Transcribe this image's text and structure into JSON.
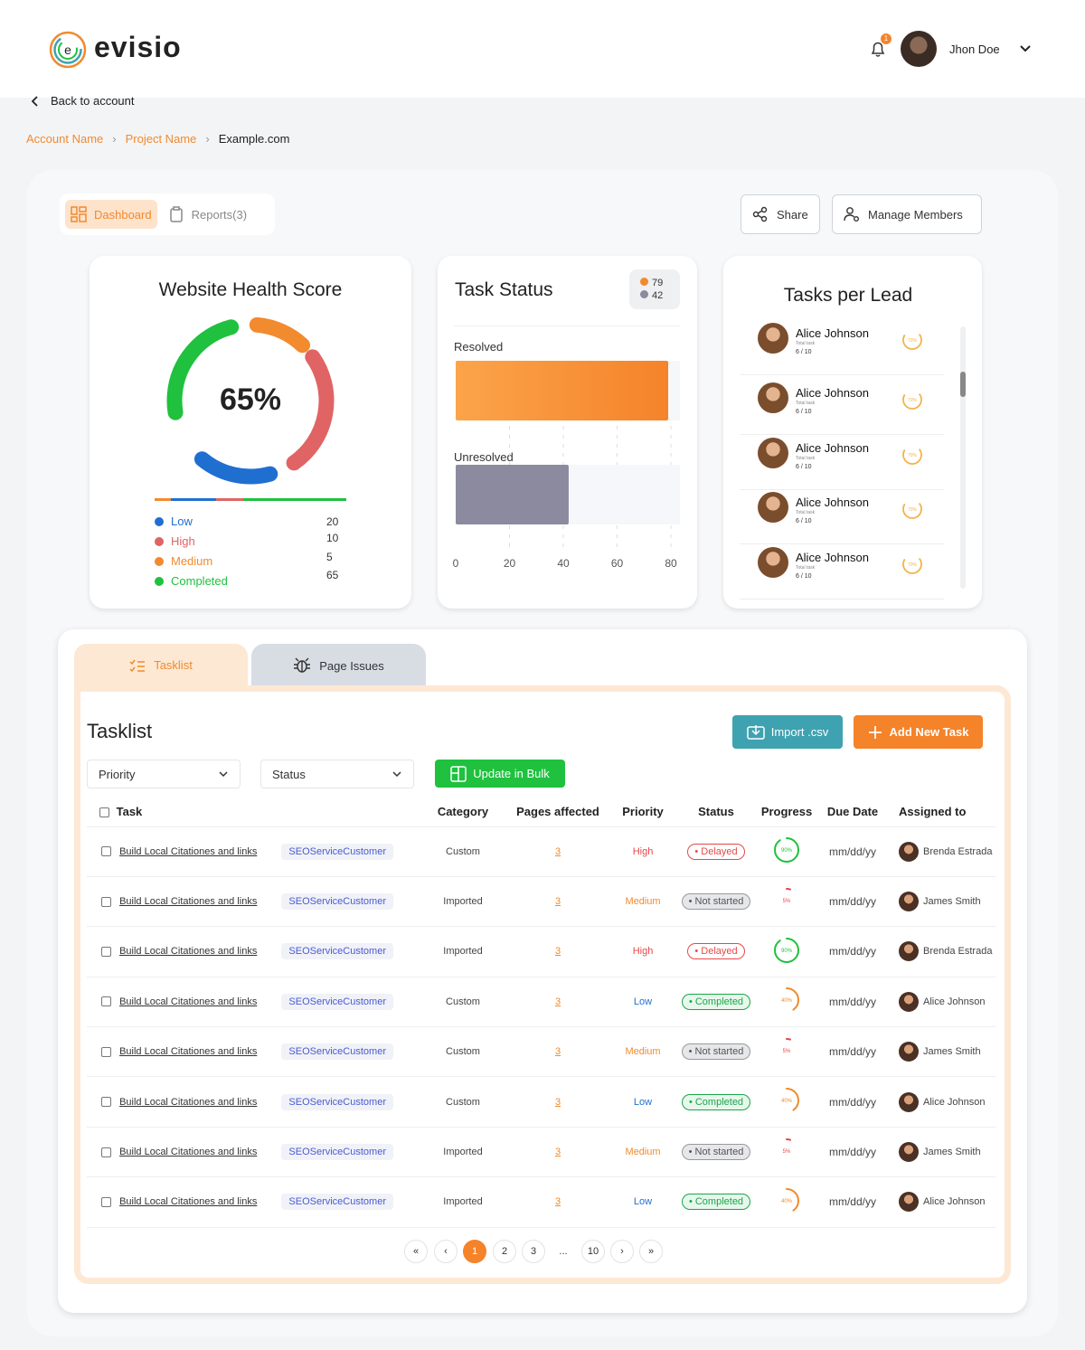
{
  "brand": {
    "name": "evisio",
    "logo_letter": "e"
  },
  "user": {
    "name": "Jhon Doe",
    "notification_count": "1"
  },
  "nav": {
    "back_label": "Back to account"
  },
  "breadcrumb": {
    "account": "Account Name",
    "project": "Project Name",
    "current": "Example.com"
  },
  "tabs": {
    "dashboard": "Dashboard",
    "reports": "Reports(3)"
  },
  "actions": {
    "share": "Share",
    "manage_members": "Manage Members"
  },
  "health": {
    "title": "Website Health Score",
    "score": "65%",
    "legend": [
      {
        "label": "Low",
        "value": "20",
        "color": "#1f6fd1"
      },
      {
        "label": "High",
        "value": "10",
        "color": "#e06464"
      },
      {
        "label": "Medium",
        "value": "5",
        "color": "#f28a2e"
      },
      {
        "label": "Completed",
        "value": "65",
        "color": "#1fc13e"
      }
    ]
  },
  "task_status": {
    "title": "Task Status",
    "badge_orange": "79",
    "badge_gray": "42",
    "resolved_label": "Resolved",
    "unresolved_label": "Unresolved",
    "x_ticks": [
      "0",
      "20",
      "40",
      "60",
      "80"
    ]
  },
  "chart_data": {
    "type": "bar",
    "categories": [
      "Resolved",
      "Unresolved"
    ],
    "values": [
      79,
      42
    ],
    "xlim": [
      0,
      80
    ]
  },
  "leads": {
    "title": "Tasks per Lead",
    "items": [
      {
        "name": "Alice Johnson",
        "sub": "Total task",
        "count": "6 / 10",
        "pct": "70%"
      },
      {
        "name": "Alice Johnson",
        "sub": "Total task",
        "count": "6 / 10",
        "pct": "70%"
      },
      {
        "name": "Alice Johnson",
        "sub": "Total task",
        "count": "6 / 10",
        "pct": "70%"
      },
      {
        "name": "Alice Johnson",
        "sub": "Total task",
        "count": "6 / 10",
        "pct": "70%"
      },
      {
        "name": "Alice Johnson",
        "sub": "Total task",
        "count": "6 / 10",
        "pct": "70%"
      }
    ]
  },
  "tasklist": {
    "tab_label": "Tasklist",
    "issues_tab_label": "Page Issues",
    "title": "Tasklist",
    "import_label": "Import .csv",
    "add_label": "Add New Task",
    "priority_filter": "Priority",
    "status_filter": "Status",
    "bulk_label": "Update in Bulk",
    "columns": [
      "Task",
      "Category",
      "Pages affected",
      "Priority",
      "Status",
      "Progress",
      "Due Date",
      "Assigned to"
    ],
    "rows": [
      {
        "task": "Build Local Citationes and links",
        "tag": "SEOServiceCustomer",
        "category": "Custom",
        "pages": "3",
        "priority": "High",
        "priority_color": "#e74848",
        "status": "Delayed",
        "status_kind": "delayed",
        "progress": "90%",
        "progress_value": 0.9,
        "progress_color": "#1fc13e",
        "due": "mm/dd/yy",
        "assignee": "Brenda Estrada"
      },
      {
        "task": "Build Local Citationes and links",
        "tag": "SEOServiceCustomer",
        "category": "Imported",
        "pages": "3",
        "priority": "Medium",
        "priority_color": "#f08a2b",
        "status": "Not started",
        "status_kind": "not",
        "progress": "5%",
        "progress_value": 0.05,
        "progress_color": "#e74848",
        "due": "mm/dd/yy",
        "assignee": "James Smith"
      },
      {
        "task": "Build Local Citationes and links",
        "tag": "SEOServiceCustomer",
        "category": "Imported",
        "pages": "3",
        "priority": "High",
        "priority_color": "#e74848",
        "status": "Delayed",
        "status_kind": "delayed",
        "progress": "90%",
        "progress_value": 0.9,
        "progress_color": "#1fc13e",
        "due": "mm/dd/yy",
        "assignee": "Brenda Estrada"
      },
      {
        "task": "Build Local Citationes and links",
        "tag": "SEOServiceCustomer",
        "category": "Custom",
        "pages": "3",
        "priority": "Low",
        "priority_color": "#1f6fd1",
        "status": "Completed",
        "status_kind": "comp",
        "progress": "40%",
        "progress_value": 0.4,
        "progress_color": "#f08a2b",
        "due": "mm/dd/yy",
        "assignee": "Alice Johnson"
      },
      {
        "task": "Build Local Citationes and links",
        "tag": "SEOServiceCustomer",
        "category": "Custom",
        "pages": "3",
        "priority": "Medium",
        "priority_color": "#f08a2b",
        "status": "Not started",
        "status_kind": "not",
        "progress": "5%",
        "progress_value": 0.05,
        "progress_color": "#e74848",
        "due": "mm/dd/yy",
        "assignee": "James Smith"
      },
      {
        "task": "Build Local Citationes and links",
        "tag": "SEOServiceCustomer",
        "category": "Custom",
        "pages": "3",
        "priority": "Low",
        "priority_color": "#1f6fd1",
        "status": "Completed",
        "status_kind": "comp",
        "progress": "40%",
        "progress_value": 0.4,
        "progress_color": "#f08a2b",
        "due": "mm/dd/yy",
        "assignee": "Alice Johnson"
      },
      {
        "task": "Build Local Citationes and links",
        "tag": "SEOServiceCustomer",
        "category": "Imported",
        "pages": "3",
        "priority": "Medium",
        "priority_color": "#f08a2b",
        "status": "Not started",
        "status_kind": "not",
        "progress": "5%",
        "progress_value": 0.05,
        "progress_color": "#e74848",
        "due": "mm/dd/yy",
        "assignee": "James Smith"
      },
      {
        "task": "Build Local Citationes and links",
        "tag": "SEOServiceCustomer",
        "category": "Imported",
        "pages": "3",
        "priority": "Low",
        "priority_color": "#1f6fd1",
        "status": "Completed",
        "status_kind": "comp",
        "progress": "40%",
        "progress_value": 0.4,
        "progress_color": "#f08a2b",
        "due": "mm/dd/yy",
        "assignee": "Alice Johnson"
      }
    ]
  },
  "pagination": {
    "first": "«",
    "prev": "‹",
    "pages": [
      "1",
      "2",
      "3",
      "...",
      "10"
    ],
    "next": "›",
    "last": "»",
    "current": "1"
  }
}
